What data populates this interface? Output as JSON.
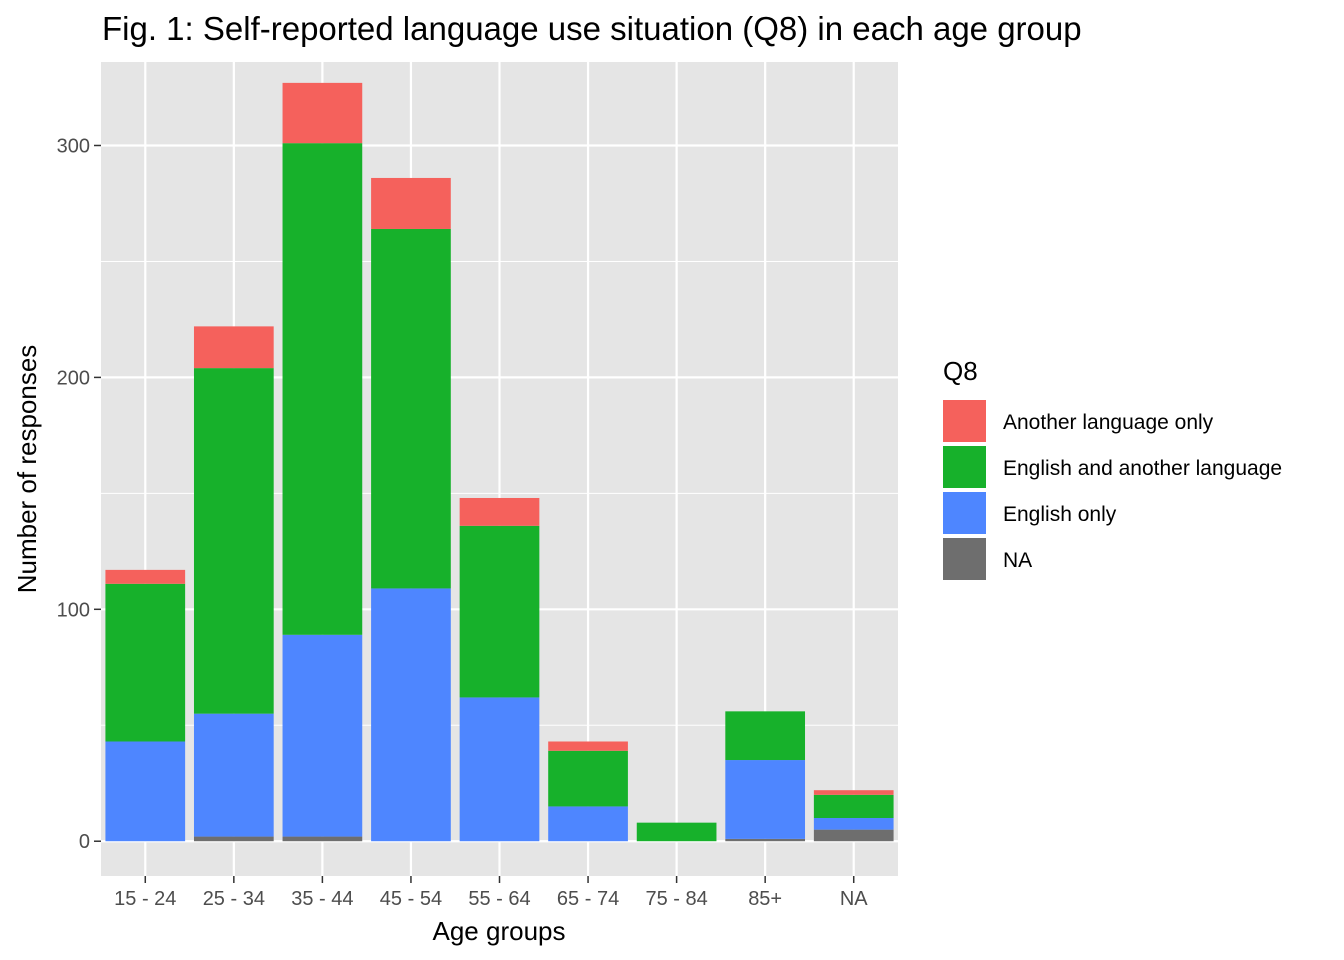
{
  "chart_data": {
    "type": "bar",
    "stacked": true,
    "title": "Fig. 1: Self-reported language use situation (Q8) in each age group",
    "xlabel": "Age groups",
    "ylabel": "Number of responses",
    "categories": [
      "15 - 24",
      "25 - 34",
      "35 - 44",
      "45 - 54",
      "55 - 64",
      "65 - 74",
      "75 - 84",
      "85+",
      "NA"
    ],
    "yticks": [
      0,
      100,
      200,
      300
    ],
    "ylim": [
      -15,
      336
    ],
    "grid": true,
    "legend": {
      "title": "Q8",
      "position": "right"
    },
    "series": [
      {
        "name": "NA",
        "color": "#6e6e6e",
        "values": [
          0,
          2,
          2,
          0,
          0,
          0,
          0,
          1,
          5
        ]
      },
      {
        "name": "English only",
        "color": "#4e86ff",
        "values": [
          43,
          53,
          87,
          109,
          62,
          15,
          0,
          34,
          5
        ]
      },
      {
        "name": "English and another language",
        "color": "#17b12b",
        "values": [
          68,
          149,
          212,
          155,
          74,
          24,
          8,
          21,
          10
        ]
      },
      {
        "name": "Another language only",
        "color": "#f5615c",
        "values": [
          6,
          18,
          26,
          22,
          12,
          4,
          0,
          0,
          2
        ]
      }
    ],
    "legend_order": [
      "Another language only",
      "English and another language",
      "English only",
      "NA"
    ]
  }
}
